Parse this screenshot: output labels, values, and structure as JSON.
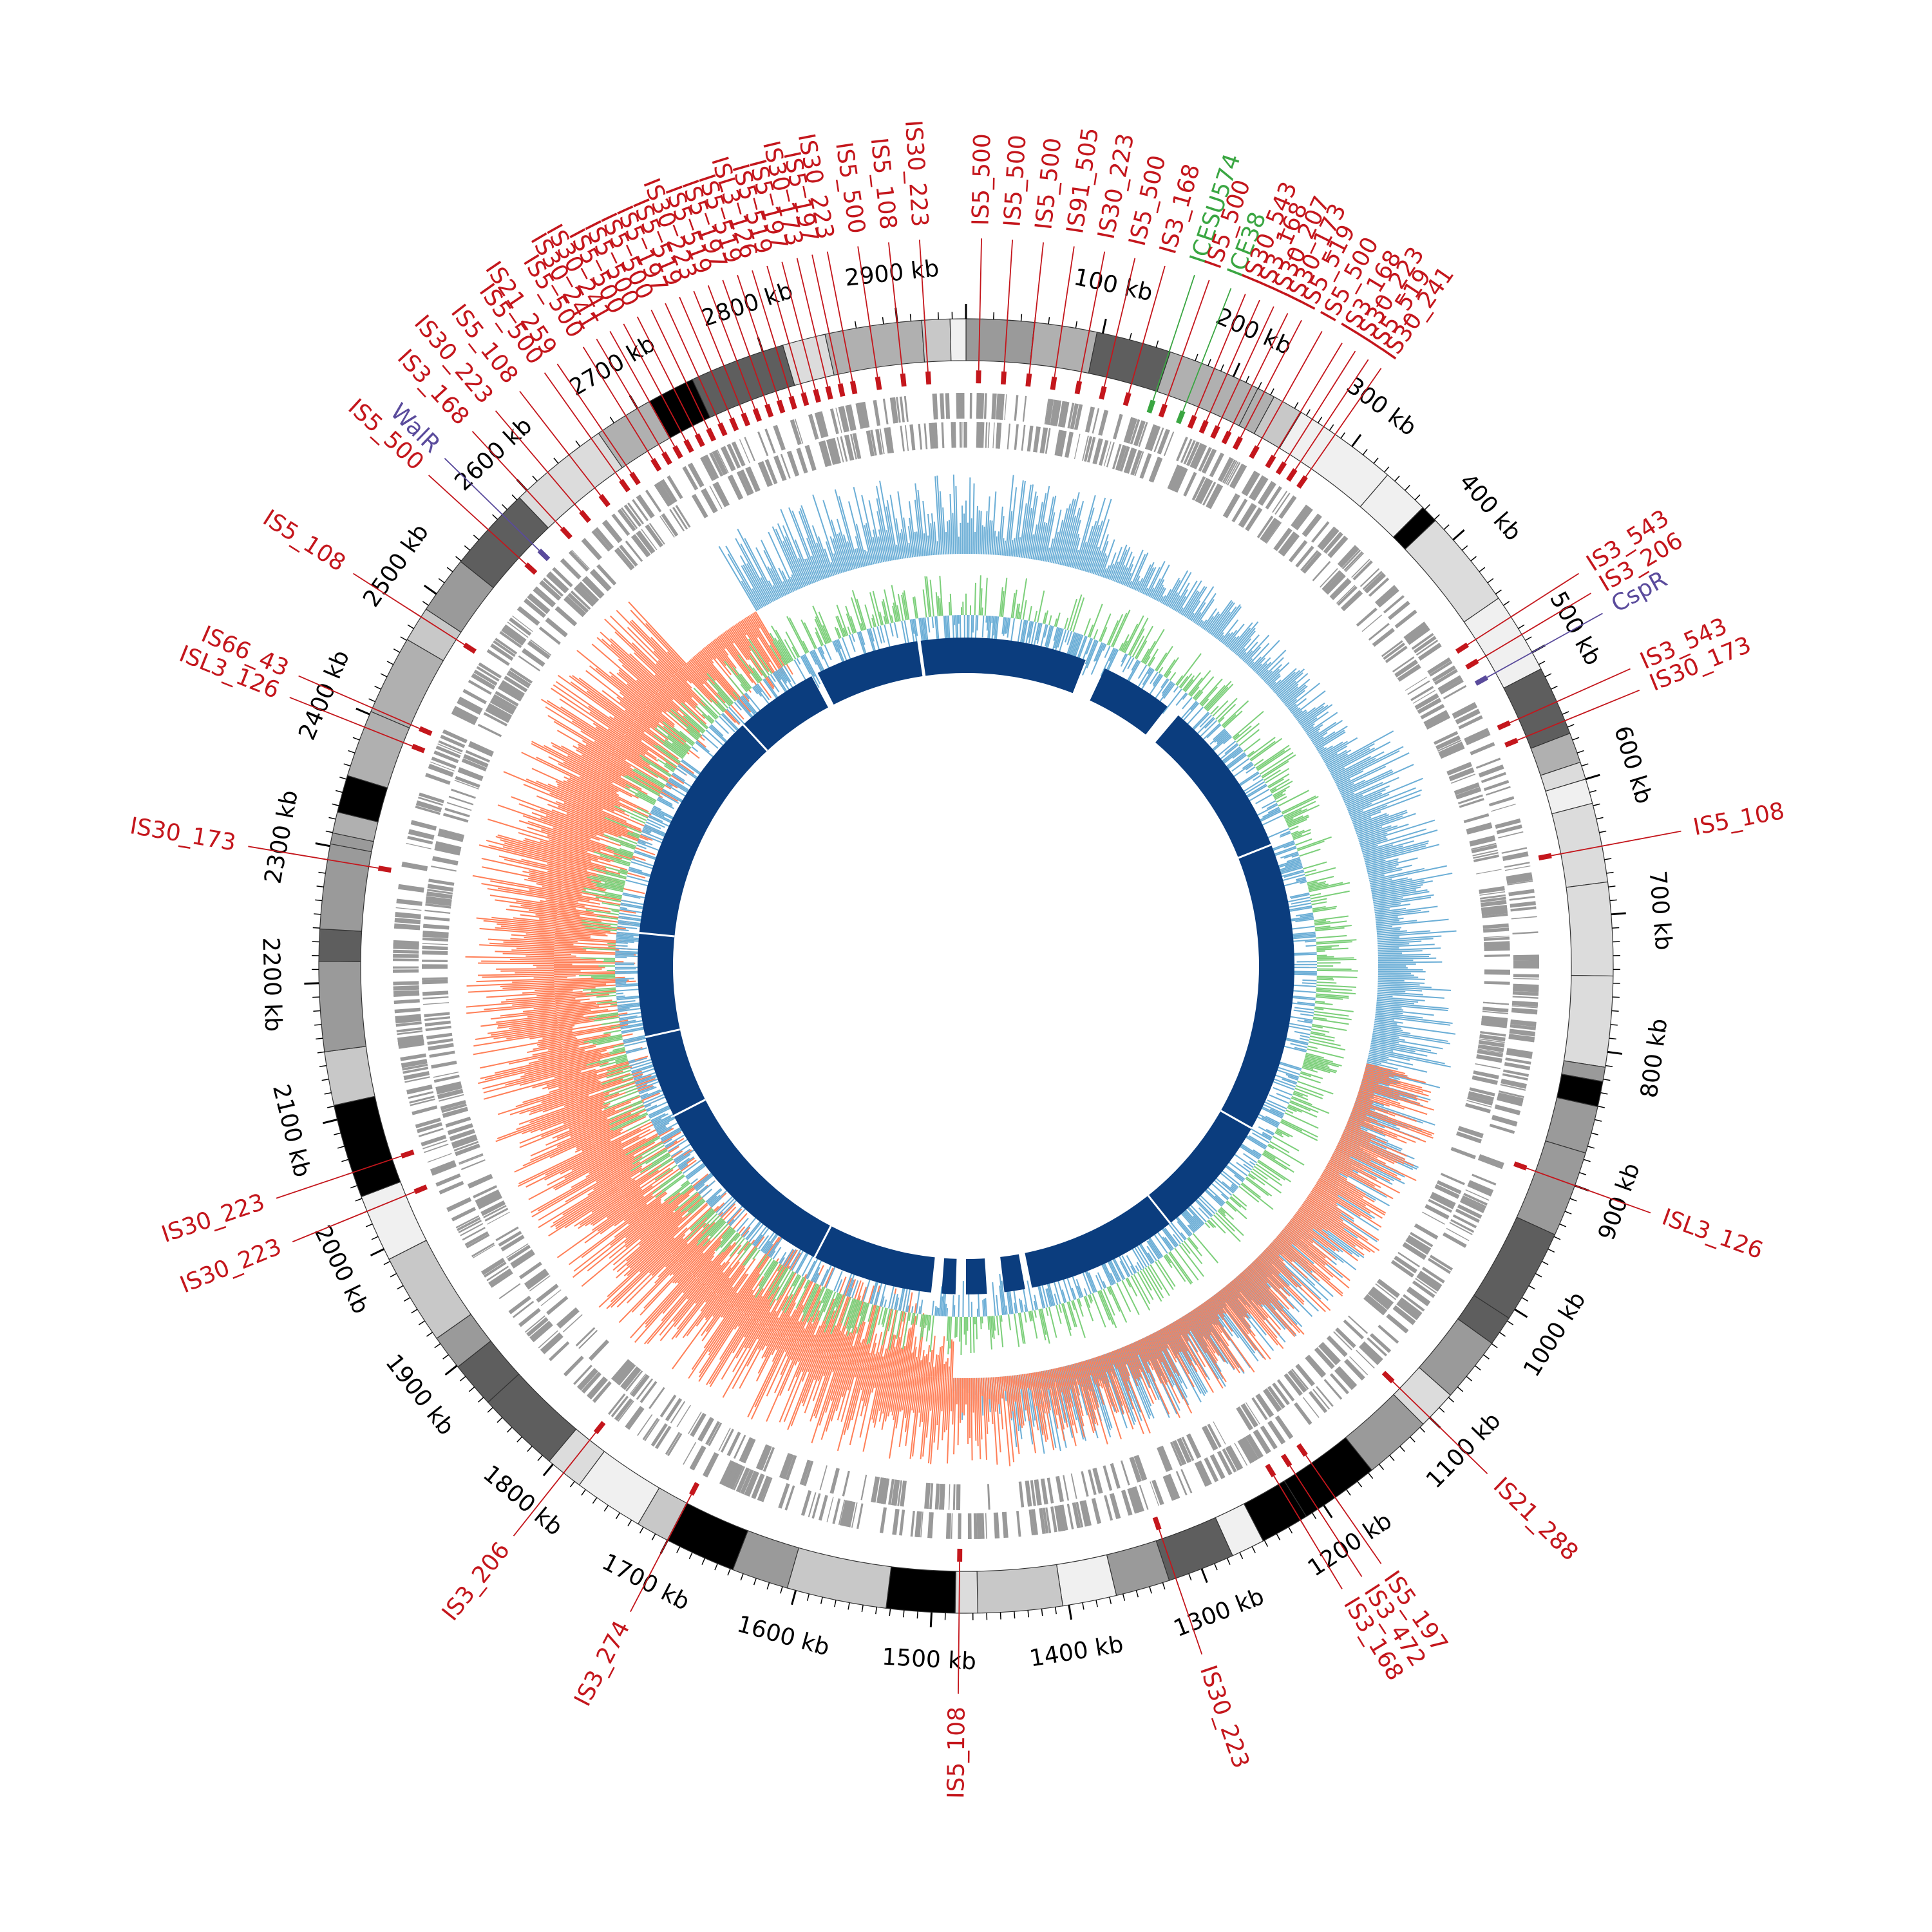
{
  "genome": {
    "length_kb": 2950,
    "tick_labels": [
      "100 kb",
      "200 kb",
      "300 kb",
      "400 kb",
      "500 kb",
      "600 kb",
      "700 kb",
      "800 kb",
      "900 kb",
      "1000 kb",
      "1100 kb",
      "1200 kb",
      "1300 kb",
      "1400 kb",
      "1500 kb",
      "1600 kb",
      "1700 kb",
      "1800 kb",
      "1900 kb",
      "2000 kb",
      "2100 kb",
      "2200 kb",
      "2300 kb",
      "2400 kb",
      "2500 kb",
      "2600 kb",
      "2700 kb",
      "2800 kb",
      "2900 kb"
    ]
  },
  "colors": {
    "is_element": "#c4161c",
    "regulator": "#5a4b9c",
    "ices": "#3aa642",
    "blue_track": "#0b3d7e",
    "skew_pos": "#ff7f57",
    "skew_neg": "#6baed6",
    "gc_pos": "#7ccf7a",
    "gc_neg": "#6baed6",
    "genes": "#999999"
  },
  "labels": [
    {
      "text": "IS5_108",
      "pos": 2480,
      "type": "is"
    },
    {
      "text": "IS5_500",
      "pos": 2560,
      "type": "is"
    },
    {
      "text": "WalR",
      "pos": 2575,
      "type": "reg"
    },
    {
      "text": "IS3_168",
      "pos": 2600,
      "type": "is"
    },
    {
      "text": "IS30_223",
      "pos": 2620,
      "type": "is"
    },
    {
      "text": "IS5_108",
      "pos": 2640,
      "type": "is"
    },
    {
      "text": "IS5_500",
      "pos": 2660,
      "type": "is"
    },
    {
      "text": "IS21_259",
      "pos": 2670,
      "type": "is"
    },
    {
      "text": "IS5_500",
      "pos": 2690,
      "type": "is"
    },
    {
      "text": "IS30_241",
      "pos": 2700,
      "type": "is"
    },
    {
      "text": "IS30_241",
      "pos": 2710,
      "type": "is"
    },
    {
      "text": "IS5_500",
      "pos": 2720,
      "type": "is"
    },
    {
      "text": "IS5_500",
      "pos": 2730,
      "type": "is"
    },
    {
      "text": "IS5_500",
      "pos": 2740,
      "type": "is"
    },
    {
      "text": "IS5_197",
      "pos": 2750,
      "type": "is"
    },
    {
      "text": "IS5_519",
      "pos": 2760,
      "type": "is"
    },
    {
      "text": "IS30_223",
      "pos": 2770,
      "type": "is"
    },
    {
      "text": "IS5_519",
      "pos": 2780,
      "type": "is"
    },
    {
      "text": "IS5_197",
      "pos": 2790,
      "type": "is"
    },
    {
      "text": "IS5_519",
      "pos": 2800,
      "type": "is"
    },
    {
      "text": "ISL3_126",
      "pos": 2810,
      "type": "is"
    },
    {
      "text": "IS5_519",
      "pos": 2820,
      "type": "is"
    },
    {
      "text": "IS5_197",
      "pos": 2830,
      "type": "is"
    },
    {
      "text": "IS30_173",
      "pos": 2840,
      "type": "is"
    },
    {
      "text": "IS5_197",
      "pos": 2850,
      "type": "is"
    },
    {
      "text": "IS30_223",
      "pos": 2860,
      "type": "is"
    },
    {
      "text": "IS5_500",
      "pos": 2880,
      "type": "is"
    },
    {
      "text": "IS5_108",
      "pos": 2900,
      "type": "is"
    },
    {
      "text": "IS30_223",
      "pos": 2920,
      "type": "is"
    },
    {
      "text": "IS5_500",
      "pos": 10,
      "type": "is"
    },
    {
      "text": "IS5_500",
      "pos": 30,
      "type": "is"
    },
    {
      "text": "IS5_500",
      "pos": 50,
      "type": "is"
    },
    {
      "text": "IS91_505",
      "pos": 70,
      "type": "is"
    },
    {
      "text": "IS30_223",
      "pos": 90,
      "type": "is"
    },
    {
      "text": "IS5_500",
      "pos": 110,
      "type": "is"
    },
    {
      "text": "IS3_168",
      "pos": 130,
      "type": "is"
    },
    {
      "text": "ICESU574",
      "pos": 150,
      "type": "ice"
    },
    {
      "text": "IS5_500",
      "pos": 160,
      "type": "is"
    },
    {
      "text": "ICE38",
      "pos": 175,
      "type": "ice"
    },
    {
      "text": "IS30_543",
      "pos": 185,
      "type": "is"
    },
    {
      "text": "IS3_168",
      "pos": 195,
      "type": "is"
    },
    {
      "text": "IS30_207",
      "pos": 205,
      "type": "is"
    },
    {
      "text": "IS30_173",
      "pos": 215,
      "type": "is"
    },
    {
      "text": "IS5_519",
      "pos": 225,
      "type": "is"
    },
    {
      "text": "IS5_500",
      "pos": 240,
      "type": "is"
    },
    {
      "text": "IS3_168",
      "pos": 255,
      "type": "is"
    },
    {
      "text": "IS30_223",
      "pos": 265,
      "type": "is"
    },
    {
      "text": "IS5_519",
      "pos": 275,
      "type": "is"
    },
    {
      "text": "IS30_241",
      "pos": 285,
      "type": "is"
    },
    {
      "text": "IS3_543",
      "pos": 470,
      "type": "is"
    },
    {
      "text": "IS3_206",
      "pos": 485,
      "type": "is"
    },
    {
      "text": "CspR",
      "pos": 500,
      "type": "reg"
    },
    {
      "text": "IS3_543",
      "pos": 540,
      "type": "is"
    },
    {
      "text": "IS30_173",
      "pos": 555,
      "type": "is"
    },
    {
      "text": "IS5_108",
      "pos": 650,
      "type": "is"
    },
    {
      "text": "ISL3_126",
      "pos": 900,
      "type": "is"
    },
    {
      "text": "IS21_288",
      "pos": 1100,
      "type": "is"
    },
    {
      "text": "IS5_197",
      "pos": 1190,
      "type": "is"
    },
    {
      "text": "IS3_472",
      "pos": 1205,
      "type": "is"
    },
    {
      "text": "IS3_168",
      "pos": 1220,
      "type": "is"
    },
    {
      "text": "IS30_223",
      "pos": 1320,
      "type": "is"
    },
    {
      "text": "IS5_108",
      "pos": 1480,
      "type": "is"
    },
    {
      "text": "IS3_274",
      "pos": 1700,
      "type": "is"
    },
    {
      "text": "IS3_206",
      "pos": 1790,
      "type": "is"
    },
    {
      "text": "IS30_223",
      "pos": 2030,
      "type": "is"
    },
    {
      "text": "IS30_223",
      "pos": 2060,
      "type": "is"
    },
    {
      "text": "IS30_173",
      "pos": 2290,
      "type": "is"
    },
    {
      "text": "ISL3_126",
      "pos": 2390,
      "type": "is"
    },
    {
      "text": "IS66_43",
      "pos": 2405,
      "type": "is"
    }
  ]
}
